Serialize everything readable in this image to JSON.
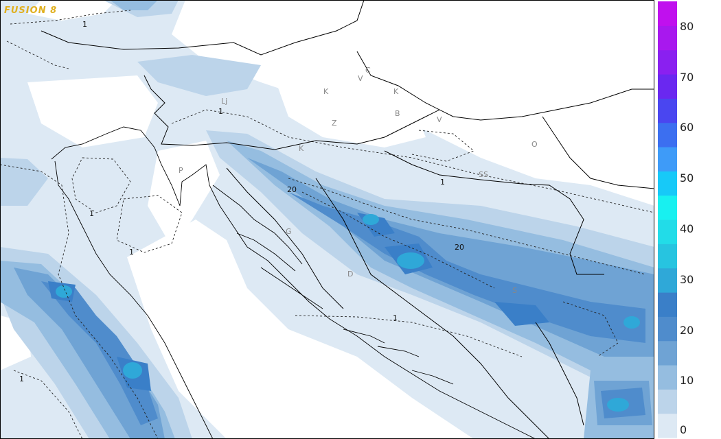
{
  "model_label": "FUSION 8",
  "colorbar": {
    "ticks": [
      "80",
      "70",
      "60",
      "50",
      "40",
      "30",
      "20",
      "10",
      "0"
    ],
    "colors": [
      "#dde9f4",
      "#bcd4ea",
      "#95bde0",
      "#6fa3d4",
      "#4f8ccc",
      "#3a7fc8",
      "#2fa8d8",
      "#27c4e0",
      "#22dce8",
      "#18f0f0",
      "#17c9f8",
      "#3e9bf8",
      "#3c6ff0",
      "#4a46f0",
      "#6a28f0",
      "#8a20f0",
      "#a818ee",
      "#c010ee"
    ]
  },
  "map_labels": {
    "lj": "Lj",
    "k1": "K",
    "k2": "K",
    "k3": "K",
    "v1": "V",
    "v2": "V",
    "c": "C",
    "b": "B",
    "z": "Z",
    "p": "P",
    "s": "S",
    "o": "O",
    "g": "G",
    "d": "D",
    "ss": "SS"
  },
  "contour_labels": {
    "c1a": "1",
    "c1b": "1",
    "c1c": "1",
    "c1d": "1",
    "c1e": "1",
    "c1f": "1",
    "c20a": "20",
    "c20b": "20"
  }
}
